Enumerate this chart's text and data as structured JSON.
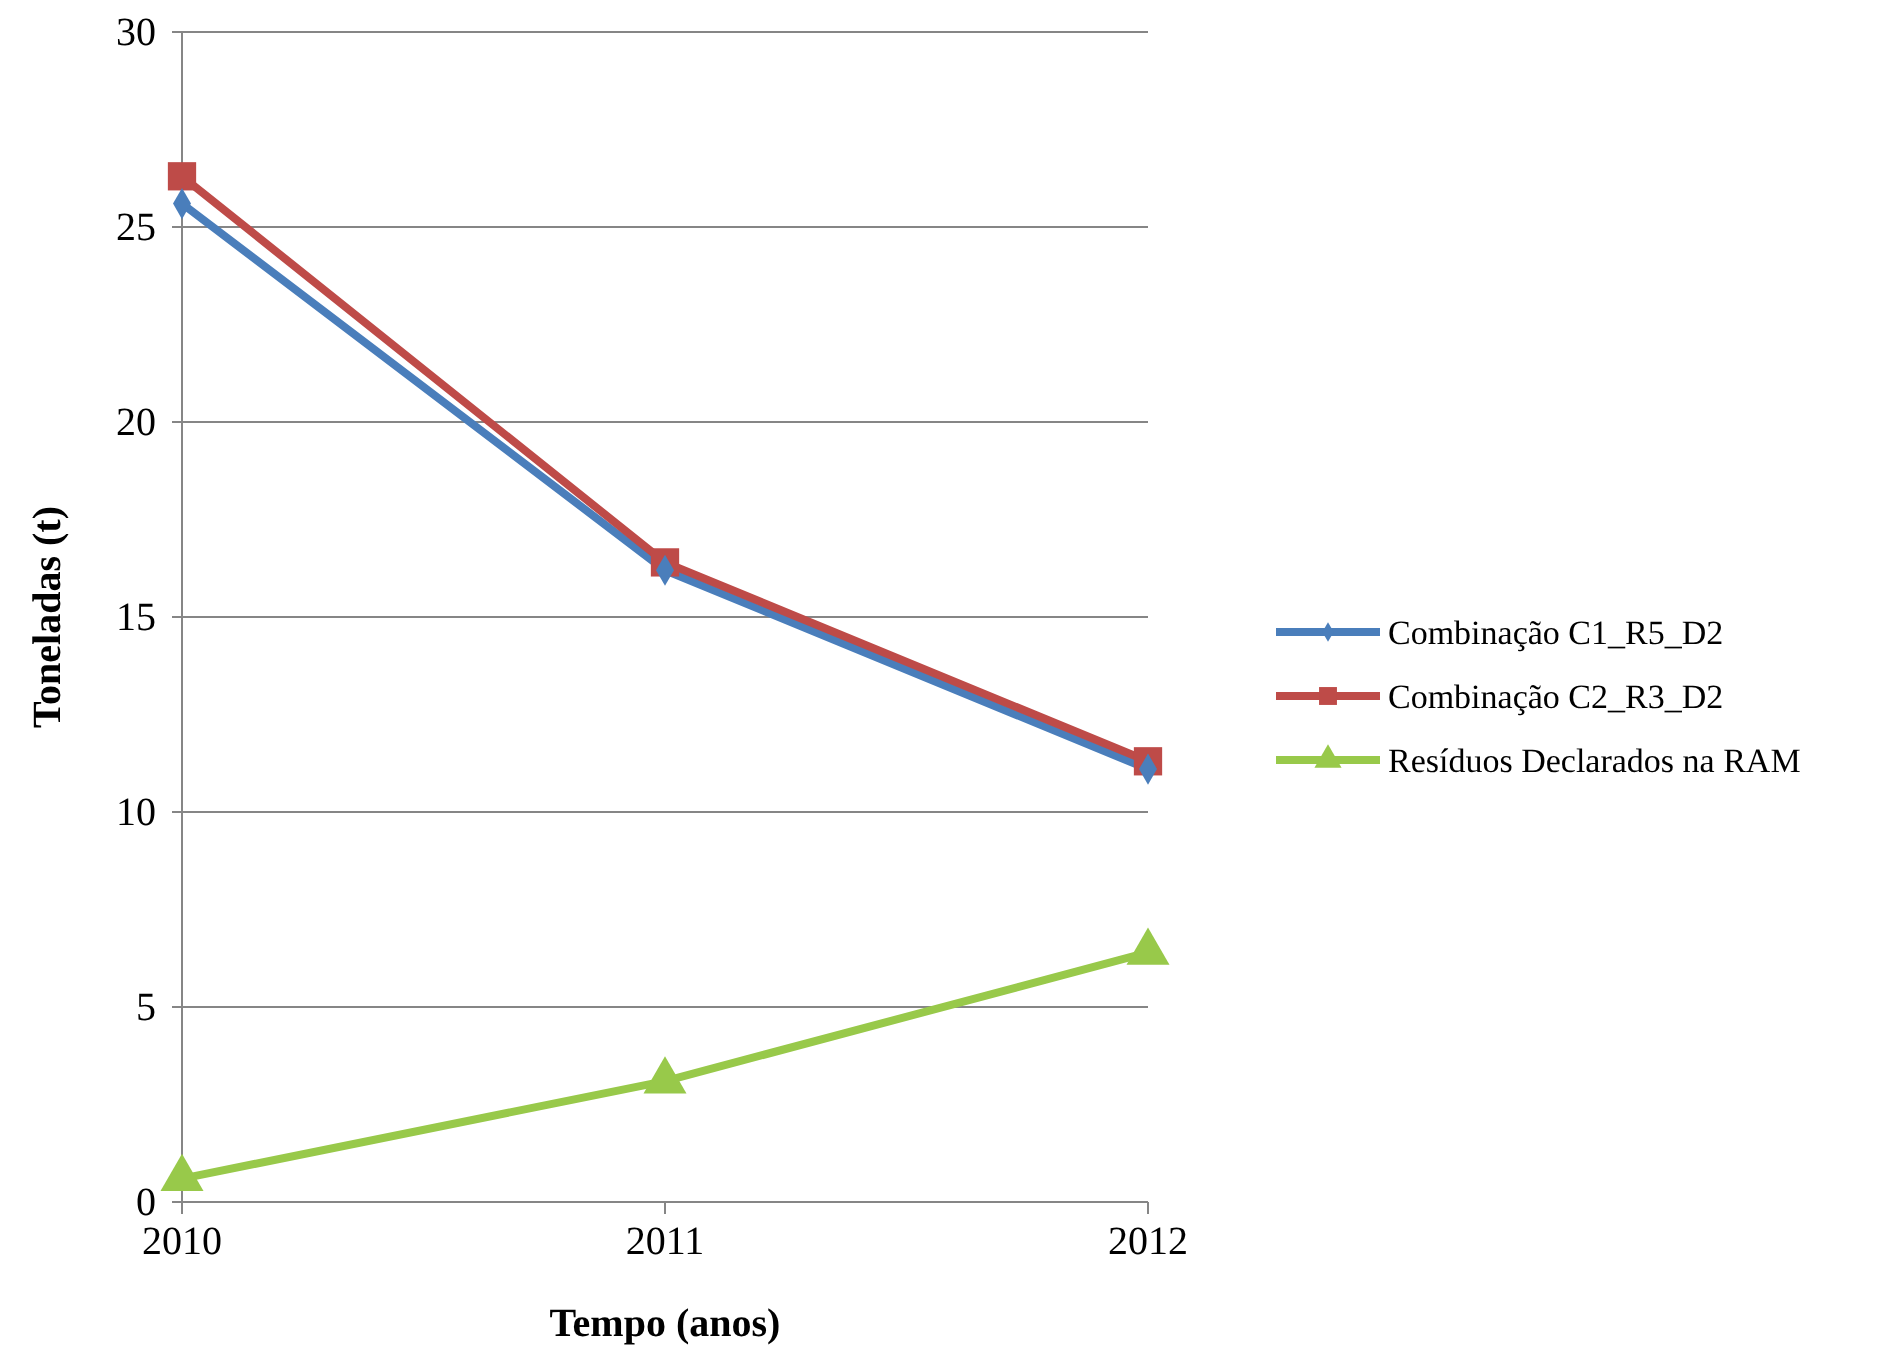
{
  "chart_data": {
    "type": "line",
    "xlabel": "Tempo (anos)",
    "ylabel": "Toneladas (t)",
    "x": [
      2010,
      2011,
      2012
    ],
    "xlim": [
      2010,
      2012
    ],
    "xticks": [
      2010,
      2011,
      2012
    ],
    "ylim": [
      0,
      30
    ],
    "yticks": [
      0,
      5,
      10,
      15,
      20,
      25,
      30
    ],
    "grid": "y",
    "legend": "right",
    "line_style": "solid",
    "series": [
      {
        "name": "Combinação C1_R5_D2",
        "color": "#4a7ebb",
        "marker": "diamond",
        "values": [
          25.6,
          16.2,
          11.1
        ]
      },
      {
        "name": "Combinação C2_R3_D2",
        "color": "#be4b48",
        "marker": "square",
        "values": [
          26.3,
          16.4,
          11.3
        ]
      },
      {
        "name": "Resíduos Declarados na RAM",
        "color": "#98c94a",
        "marker": "triangle",
        "values": [
          0.6,
          3.1,
          6.4
        ]
      }
    ]
  }
}
